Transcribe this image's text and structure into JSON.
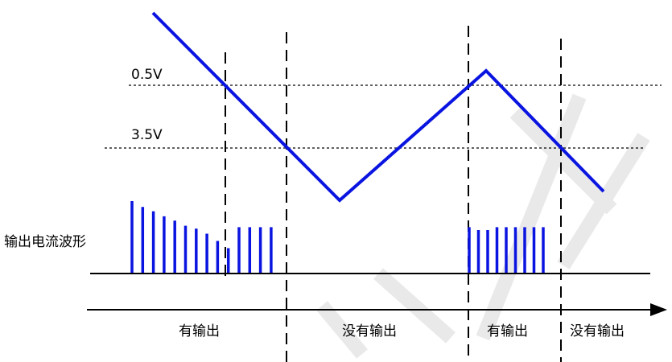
{
  "colors": {
    "signal": "#0a14e0",
    "ink": "#000000",
    "watermark": "#d8d8d8"
  },
  "levels": {
    "upper": "0.5V",
    "lower": "3.5V"
  },
  "side_label": "输出电流波形",
  "segments": {
    "seg1": "有输出",
    "seg2": "没有输出",
    "seg3": "有输出",
    "seg4": "没有输出"
  },
  "pulse_groups": {
    "first_relative_heights": [
      1.0,
      0.92,
      0.86,
      0.79,
      0.73,
      0.66,
      0.62,
      0.55,
      0.45,
      0.35,
      0.64,
      0.64,
      0.64,
      0.64
    ],
    "second_relative_heights": [
      0.64,
      0.6,
      0.6,
      0.64,
      0.64,
      0.64,
      0.64,
      0.64,
      0.64
    ]
  }
}
